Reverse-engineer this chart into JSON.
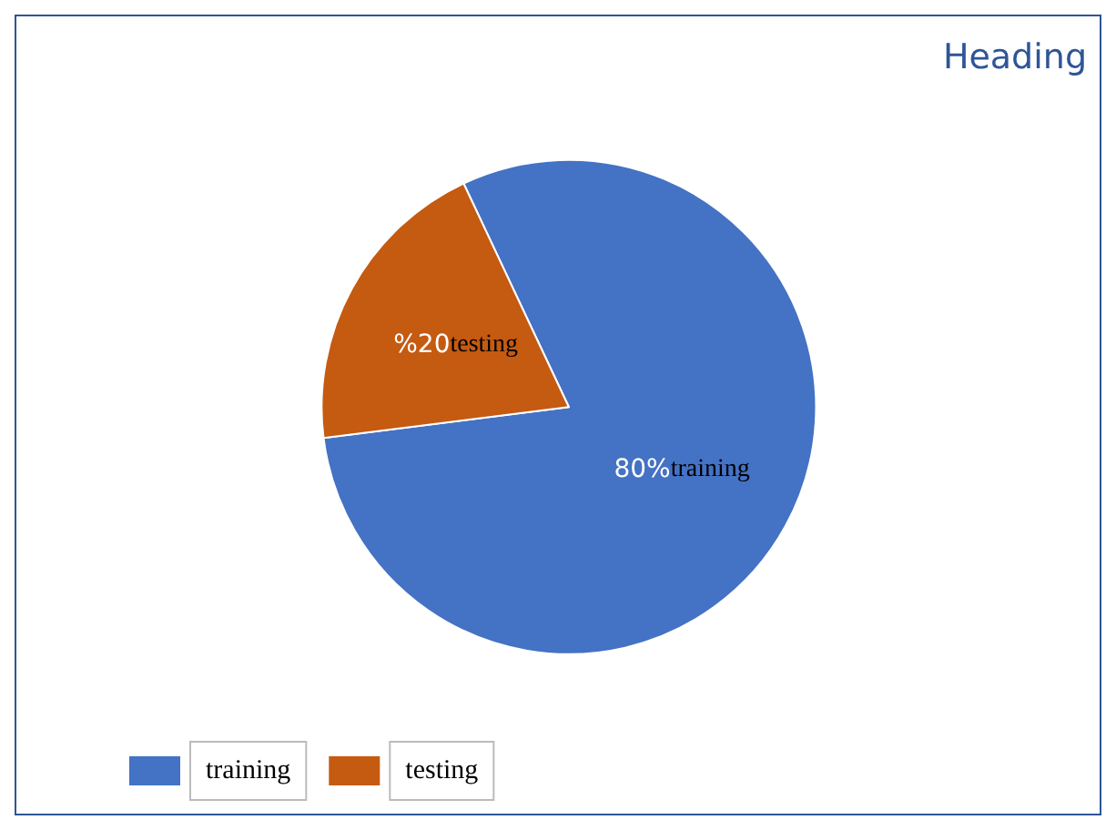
{
  "chart_data": {
    "type": "pie",
    "title": "Heading",
    "categories": [
      "training",
      "testing"
    ],
    "values": [
      80,
      20
    ],
    "colors": [
      "#4472c4",
      "#c55a11"
    ],
    "value_labels": [
      "80%",
      "%20"
    ],
    "legend": "bottom left"
  }
}
